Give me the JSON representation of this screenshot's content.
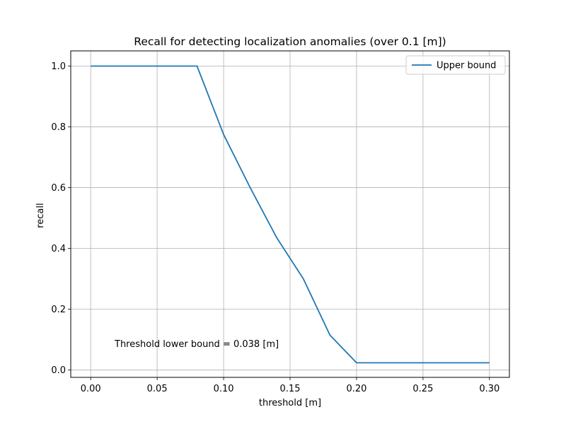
{
  "chart_data": {
    "type": "line",
    "title": "Recall for detecting localization anomalies (over 0.1 [m])",
    "xlabel": "threshold [m]",
    "ylabel": "recall",
    "xlim": [
      -0.015,
      0.315
    ],
    "ylim": [
      -0.024,
      1.05
    ],
    "xticks": [
      0.0,
      0.05,
      0.1,
      0.15,
      0.2,
      0.25,
      0.3
    ],
    "xtick_labels": [
      "0.00",
      "0.05",
      "0.10",
      "0.15",
      "0.20",
      "0.25",
      "0.30"
    ],
    "yticks": [
      0.0,
      0.2,
      0.4,
      0.6,
      0.8,
      1.0
    ],
    "ytick_labels": [
      "0.0",
      "0.2",
      "0.4",
      "0.6",
      "0.8",
      "1.0"
    ],
    "grid": true,
    "legend_position": "top-right",
    "series": [
      {
        "name": "Upper bound",
        "color": "#1f77b4",
        "x": [
          0.0,
          0.02,
          0.04,
          0.06,
          0.08,
          0.1,
          0.12,
          0.14,
          0.16,
          0.18,
          0.2,
          0.22,
          0.24,
          0.26,
          0.28,
          0.3
        ],
        "y": [
          1.0,
          1.0,
          1.0,
          1.0,
          1.0,
          0.775,
          0.6,
          0.435,
          0.3,
          0.115,
          0.024,
          0.024,
          0.024,
          0.024,
          0.024,
          0.024
        ]
      }
    ],
    "annotations": [
      {
        "text": "Threshold lower bound = 0.038 [m]",
        "x": 0.018,
        "y": 0.085
      }
    ]
  }
}
